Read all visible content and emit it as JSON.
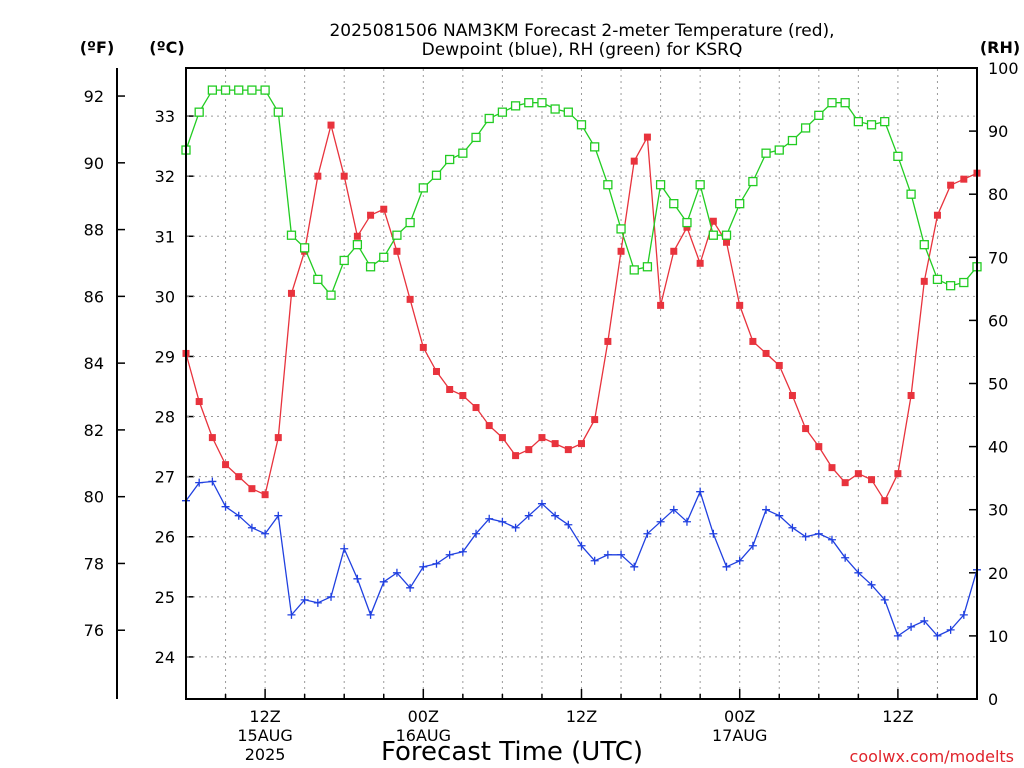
{
  "chart_data": {
    "type": "line",
    "title_line1": "2025081506 NAM3KM Forecast 2-meter Temperature (red),",
    "title_line2": "Dewpoint (blue), RH (green) for KSRQ",
    "xlabel": "Forecast Time (UTC)",
    "credit": "coolwx.com/modelts",
    "units": {
      "fahrenheit": "(ºF)",
      "celsius": "(ºC)",
      "rh": "(RH)"
    },
    "fahrenheit_ticks": [
      "76",
      "78",
      "80",
      "82",
      "84",
      "86",
      "88",
      "90",
      "92"
    ],
    "celsius_ticks": [
      "24",
      "25",
      "26",
      "27",
      "28",
      "29",
      "30",
      "31",
      "32",
      "33"
    ],
    "rh_ticks": [
      "0",
      "10",
      "20",
      "30",
      "40",
      "50",
      "60",
      "70",
      "80",
      "90",
      "100"
    ],
    "x_ticks": [
      {
        "hour": 12,
        "label1": "12Z",
        "label2": "15AUG",
        "label3": "2025"
      },
      {
        "hour": 24,
        "label1": "00Z",
        "label2": "16AUG",
        "label3": ""
      },
      {
        "hour": 36,
        "label1": "12Z",
        "label2": "",
        "label3": ""
      },
      {
        "hour": 48,
        "label1": "00Z",
        "label2": "17AUG",
        "label3": ""
      },
      {
        "hour": 60,
        "label1": "12Z",
        "label2": "",
        "label3": ""
      }
    ],
    "x_range_hours_since_15AUG00Z": [
      6,
      66
    ],
    "celsius_range": [
      23.3,
      33.8
    ],
    "rh_range": [
      0,
      100
    ],
    "grid": true,
    "series": [
      {
        "name": "Temperature",
        "color": "#e8333d",
        "marker": "filled-square",
        "units": "ºC",
        "values": [
          29.05,
          28.25,
          27.65,
          27.2,
          27.0,
          26.8,
          26.7,
          27.65,
          30.05,
          30.75,
          32.0,
          32.85,
          32.0,
          31.0,
          31.35,
          31.45,
          30.75,
          29.95,
          29.15,
          28.75,
          28.45,
          28.35,
          28.15,
          27.85,
          27.65,
          27.35,
          27.45,
          27.65,
          27.55,
          27.45,
          27.55,
          27.95,
          29.25,
          30.75,
          32.25,
          32.65,
          29.85,
          30.75,
          31.15,
          30.55,
          31.25,
          30.9,
          29.85,
          29.25,
          29.05,
          28.85,
          28.35,
          27.8,
          27.5,
          27.15,
          26.9,
          27.05,
          26.95,
          26.6,
          27.05,
          28.35,
          30.25,
          31.35,
          31.85,
          31.95,
          32.05
        ]
      },
      {
        "name": "Dewpoint",
        "color": "#2040e0",
        "marker": "plus",
        "units": "ºC",
        "values": [
          26.6,
          26.9,
          26.92,
          26.5,
          26.35,
          26.15,
          26.05,
          26.35,
          24.7,
          24.95,
          24.9,
          25.0,
          25.8,
          25.3,
          24.7,
          25.25,
          25.4,
          25.15,
          25.5,
          25.55,
          25.7,
          25.75,
          26.05,
          26.3,
          26.25,
          26.15,
          26.35,
          26.55,
          26.35,
          26.2,
          25.85,
          25.6,
          25.7,
          25.7,
          25.5,
          26.05,
          26.25,
          26.45,
          26.25,
          26.75,
          26.05,
          25.5,
          25.6,
          25.85,
          26.45,
          26.35,
          26.15,
          26.0,
          26.05,
          25.95,
          25.65,
          25.4,
          25.2,
          24.95,
          24.35,
          24.5,
          24.6,
          24.35,
          24.45,
          24.7,
          25.45
        ]
      },
      {
        "name": "RH",
        "color": "#22cc22",
        "marker": "open-square",
        "units": "%",
        "values": [
          87,
          93,
          96.5,
          96.5,
          96.5,
          96.5,
          96.5,
          93,
          73.5,
          71.5,
          66.5,
          64,
          69.5,
          72,
          68.5,
          70,
          73.5,
          75.5,
          81,
          83,
          85.5,
          86.5,
          89,
          92,
          93,
          94,
          94.5,
          94.5,
          93.5,
          93,
          91,
          87.5,
          81.5,
          74.5,
          68,
          68.5,
          81.5,
          78.5,
          75.5,
          81.5,
          73.5,
          73.5,
          78.5,
          82,
          86.5,
          87,
          88.5,
          90.5,
          92.5,
          94.5,
          94.5,
          91.5,
          91,
          91.5,
          86,
          80,
          72,
          66.5,
          65.5,
          66,
          68.5
        ]
      }
    ]
  }
}
